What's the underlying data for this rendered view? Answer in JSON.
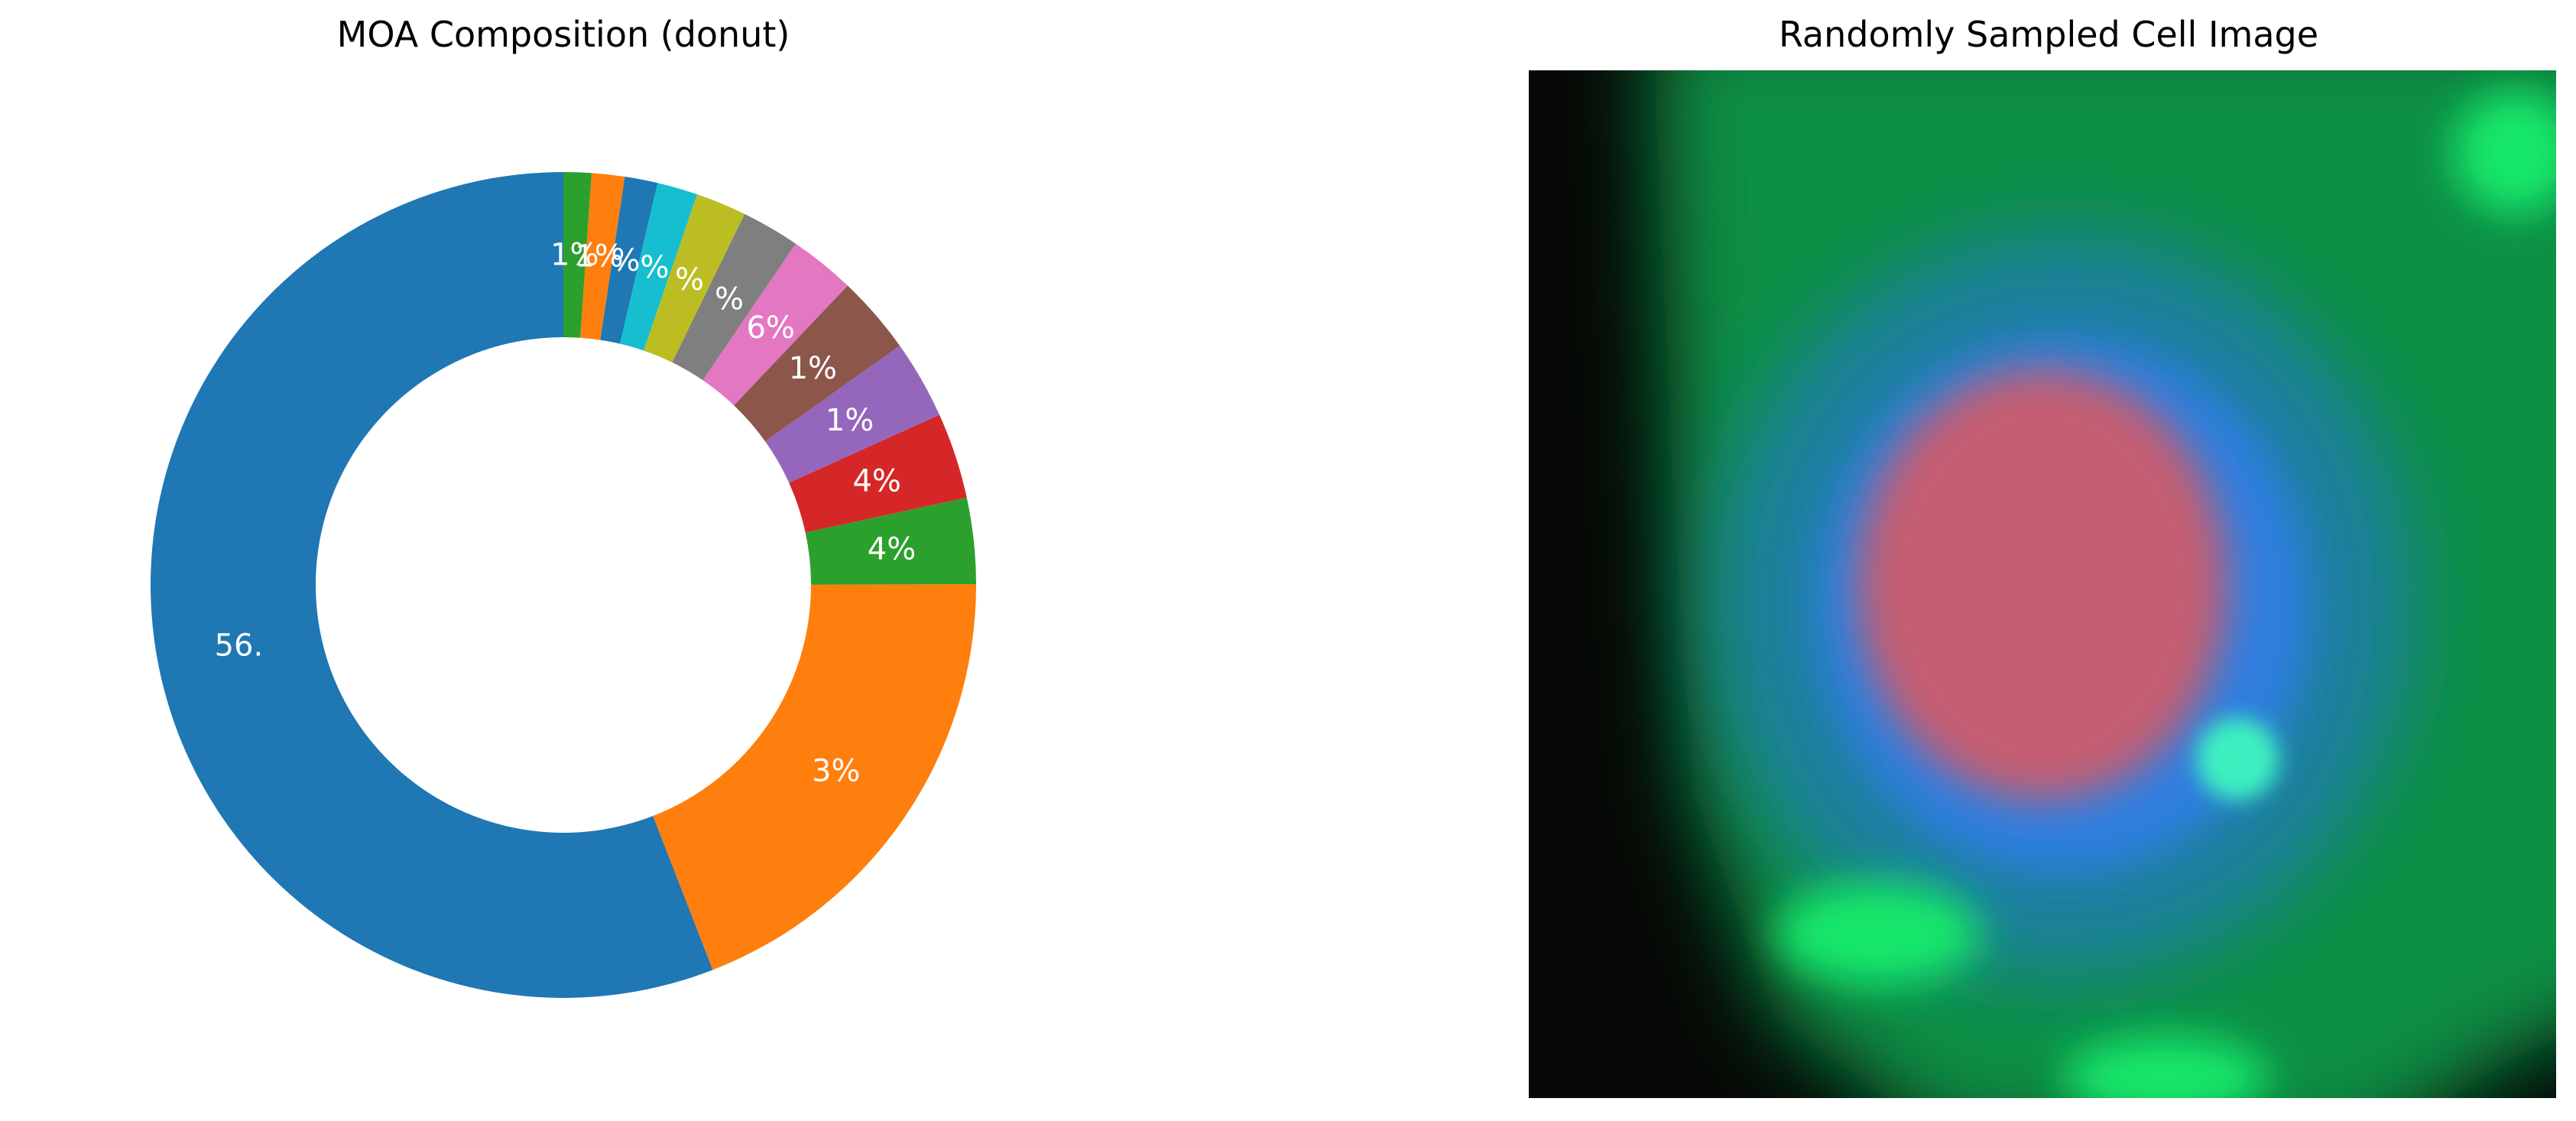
{
  "left_panel": {
    "title": "MOA Composition (donut)"
  },
  "right_panel": {
    "title": "Randomly Sampled Cell Image"
  },
  "chart_data": {
    "type": "pie",
    "variant": "donut",
    "title": "MOA Composition (donut)",
    "start": "top, counter-clockwise",
    "slices": [
      {
        "label": "56.",
        "value": 56.4,
        "color": "#1f77b4"
      },
      {
        "label": "3%",
        "value": 19.3,
        "color": "#ff7f0e"
      },
      {
        "label": "4%",
        "value": 3.4,
        "color": "#2ca02c"
      },
      {
        "label": "4%",
        "value": 3.4,
        "color": "#d62728"
      },
      {
        "label": "1%",
        "value": 3.1,
        "color": "#9467bd"
      },
      {
        "label": "1%",
        "value": 3.1,
        "color": "#8c564b"
      },
      {
        "label": "6%",
        "value": 2.6,
        "color": "#e377c2"
      },
      {
        "label": "%",
        "value": 2.3,
        "color": "#7f7f7f"
      },
      {
        "label": "%",
        "value": 2.0,
        "color": "#bcbd22"
      },
      {
        "label": "%",
        "value": 1.6,
        "color": "#17becf"
      },
      {
        "label": "%",
        "value": 1.3,
        "color": "#1f77b4"
      },
      {
        "label": "1%",
        "value": 1.3,
        "color": "#ff7f0e"
      },
      {
        "label": "1%",
        "value": 1.1,
        "color": "#2ca02c"
      }
    ],
    "legend": false
  },
  "cell_image": {
    "colors": {
      "background": "#060906",
      "cytoplasm": "#0a8f45",
      "mid": "#1a7fa0",
      "ring": "#2e7fe0",
      "nucleus": "#e0585e",
      "bright": "#18e86a",
      "spot": "#3df0c0"
    }
  }
}
